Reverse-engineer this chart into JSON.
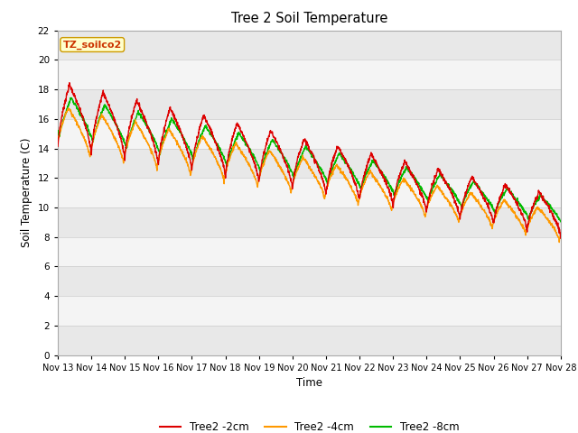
{
  "title": "Tree 2 Soil Temperature",
  "xlabel": "Time",
  "ylabel": "Soil Temperature (C)",
  "ylim": [
    0,
    22
  ],
  "yticks": [
    0,
    2,
    4,
    6,
    8,
    10,
    12,
    14,
    16,
    18,
    20,
    22
  ],
  "legend_label": "TZ_soilco2",
  "series": {
    "Tree2 -2cm": {
      "color": "#dd0000",
      "lw": 1.0
    },
    "Tree2 -4cm": {
      "color": "#ff9900",
      "lw": 1.0
    },
    "Tree2 -8cm": {
      "color": "#00bb00",
      "lw": 1.0
    }
  },
  "bg_color": "#ffffff",
  "plot_bg_color": "#ffffff",
  "band_colors": [
    "#e8e8e8",
    "#f4f4f4"
  ],
  "grid_color": "#cccccc",
  "x_labels": [
    "Nov 13",
    "Nov 14",
    "Nov 15",
    "Nov 16",
    "Nov 17",
    "Nov 18",
    "Nov 19",
    "Nov 20",
    "Nov 21",
    "Nov 22",
    "Nov 23",
    "Nov 24",
    "Nov 25",
    "Nov 26",
    "Nov 27",
    "Nov 28"
  ]
}
